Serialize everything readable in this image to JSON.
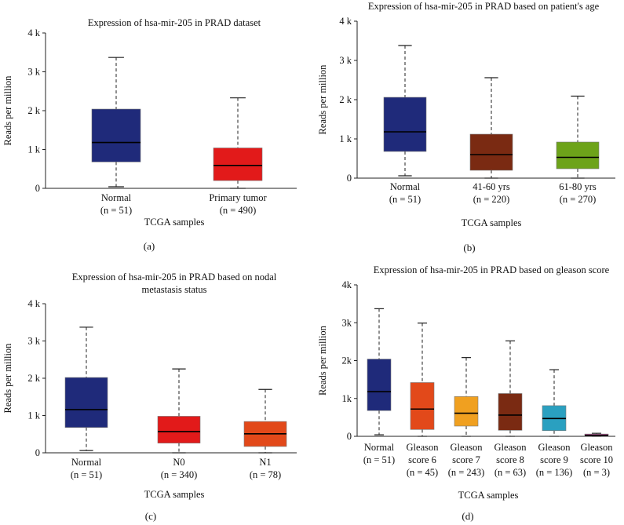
{
  "chart_data": [
    {
      "type": "box",
      "panel": "(a)",
      "title": [
        "Expression of hsa-mir-205 in PRAD dataset"
      ],
      "xlabel": "TCGA samples",
      "ylabel": "Reads per million",
      "ylim": [
        0,
        4000
      ],
      "ticks": [
        {
          "v": 0,
          "t": "0"
        },
        {
          "v": 1000,
          "t": "1 k"
        },
        {
          "v": 2000,
          "t": "2 k"
        },
        {
          "v": 3000,
          "t": "3 k"
        },
        {
          "v": 4000,
          "t": "4 k"
        }
      ],
      "series": [
        {
          "label": [
            "Normal",
            "(n = 51)"
          ],
          "min": 40,
          "q1": 680,
          "median": 1180,
          "q3": 2040,
          "max": 3370,
          "color": "#1f2a7a"
        },
        {
          "label": [
            "Primary tumor",
            "(n = 490)"
          ],
          "min": 0,
          "q1": 200,
          "median": 590,
          "q3": 1040,
          "max": 2330,
          "color": "#e21a1a"
        }
      ]
    },
    {
      "type": "box",
      "panel": "(b)",
      "title": [
        "Expression of hsa-mir-205 in PRAD based on patient's age"
      ],
      "xlabel": "TCGA samples",
      "ylabel": "Reads per million",
      "ylim": [
        0,
        4000
      ],
      "ticks": [
        {
          "v": 0,
          "t": "0"
        },
        {
          "v": 1000,
          "t": "1 k"
        },
        {
          "v": 2000,
          "t": "2 k"
        },
        {
          "v": 3000,
          "t": "3 k"
        },
        {
          "v": 4000,
          "t": "4 k"
        }
      ],
      "series": [
        {
          "label": [
            "Normal",
            "(n = 51)"
          ],
          "min": 60,
          "q1": 680,
          "median": 1180,
          "q3": 2060,
          "max": 3380,
          "color": "#1f2a7a"
        },
        {
          "label": [
            "41-60 yrs",
            "(n = 220)"
          ],
          "min": 0,
          "q1": 200,
          "median": 600,
          "q3": 1120,
          "max": 2560,
          "color": "#7a2a12"
        },
        {
          "label": [
            "61-80 yrs",
            "(n = 270)"
          ],
          "min": 0,
          "q1": 240,
          "median": 530,
          "q3": 920,
          "max": 2090,
          "color": "#6da31a"
        }
      ]
    },
    {
      "type": "box",
      "panel": "(c)",
      "title": [
        "Expression of hsa-mir-205 in PRAD based on nodal",
        "metastasis status"
      ],
      "xlabel": "TCGA samples",
      "ylabel": "Reads per million",
      "ylim": [
        0,
        4000
      ],
      "ticks": [
        {
          "v": 0,
          "t": "0"
        },
        {
          "v": 1000,
          "t": "1 k"
        },
        {
          "v": 2000,
          "t": "2 k"
        },
        {
          "v": 3000,
          "t": "3 k"
        },
        {
          "v": 4000,
          "t": "4 k"
        }
      ],
      "series": [
        {
          "label": [
            "Normal",
            "(n = 51)"
          ],
          "min": 60,
          "q1": 680,
          "median": 1160,
          "q3": 2020,
          "max": 3370,
          "color": "#1f2a7a"
        },
        {
          "label": [
            "N0",
            "(n = 340)"
          ],
          "min": 0,
          "q1": 260,
          "median": 570,
          "q3": 980,
          "max": 2250,
          "color": "#e21a1a"
        },
        {
          "label": [
            "N1",
            "(n = 78)"
          ],
          "min": 0,
          "q1": 170,
          "median": 510,
          "q3": 840,
          "max": 1700,
          "color": "#e2491a"
        }
      ]
    },
    {
      "type": "box",
      "panel": "(d)",
      "title": [
        "Expression of hsa-mir-205 in PRAD based on gleason score"
      ],
      "xlabel": "TCGA samples",
      "ylabel": "Reads per million",
      "ylim": [
        0,
        4000
      ],
      "ticks": [
        {
          "v": 0,
          "t": "0"
        },
        {
          "v": 1000,
          "t": "1k"
        },
        {
          "v": 2000,
          "t": "2k"
        },
        {
          "v": 3000,
          "t": "3k"
        },
        {
          "v": 4000,
          "t": "4k"
        }
      ],
      "series": [
        {
          "label": [
            "Normal",
            "(n = 51)"
          ],
          "min": 40,
          "q1": 680,
          "median": 1180,
          "q3": 2040,
          "max": 3370,
          "color": "#1f2a7a"
        },
        {
          "label": [
            "Gleason",
            "score 6",
            "(n = 45)"
          ],
          "min": 0,
          "q1": 180,
          "median": 720,
          "q3": 1420,
          "max": 2990,
          "color": "#e2491a"
        },
        {
          "label": [
            "Gleason",
            "score 7",
            "(n = 243)"
          ],
          "min": 0,
          "q1": 270,
          "median": 610,
          "q3": 1050,
          "max": 2080,
          "color": "#f0a020"
        },
        {
          "label": [
            "Gleason",
            "score 8",
            "(n = 63)"
          ],
          "min": 0,
          "q1": 160,
          "median": 560,
          "q3": 1130,
          "max": 2520,
          "color": "#7a2a12"
        },
        {
          "label": [
            "Gleason",
            "score 9",
            "(n = 136)"
          ],
          "min": 0,
          "q1": 150,
          "median": 470,
          "q3": 810,
          "max": 1760,
          "color": "#2aa0c0"
        },
        {
          "label": [
            "Gleason",
            "score 10",
            "(n = 3)"
          ],
          "min": 0,
          "q1": 0,
          "median": 20,
          "q3": 60,
          "max": 80,
          "color": "#8a2a6a"
        }
      ]
    }
  ]
}
